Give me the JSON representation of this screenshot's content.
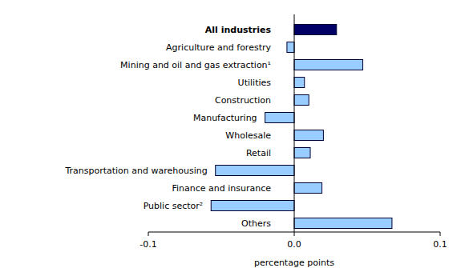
{
  "chart_data": {
    "type": "bar",
    "orientation": "horizontal",
    "categories": [
      "All industries",
      "Agriculture and forestry",
      "Mining and oil and gas extraction¹",
      "Utilities",
      "Construction",
      "Manufacturing",
      "Wholesale",
      "Retail",
      "Transportation and warehousing",
      "Finance and insurance",
      "Public sector²",
      "Others"
    ],
    "values": [
      0.029,
      -0.005,
      0.047,
      0.007,
      0.01,
      -0.02,
      0.02,
      0.011,
      -0.054,
      0.019,
      -0.057,
      0.067
    ],
    "colors": [
      "#000066",
      "#99ccff",
      "#99ccff",
      "#99ccff",
      "#99ccff",
      "#99ccff",
      "#99ccff",
      "#99ccff",
      "#99ccff",
      "#99ccff",
      "#99ccff",
      "#99ccff"
    ],
    "x_label": "percentage points",
    "xlim": [
      -0.1,
      0.1
    ],
    "xticks": [
      -0.1,
      {
        "value": 0,
        "label": "0.0"
      },
      0.1
    ],
    "grid": false
  }
}
